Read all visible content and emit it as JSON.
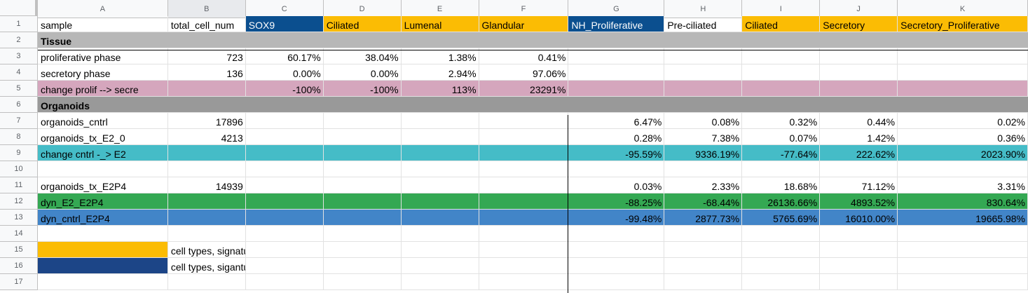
{
  "columns": [
    "A",
    "B",
    "C",
    "D",
    "E",
    "F",
    "G",
    "H",
    "I",
    "J",
    "K"
  ],
  "colors": {
    "sox9_blue": "#0b4f8f",
    "secretory_yellow": "#fbbc04",
    "nh_prolif_blue": "#0b4f8f",
    "gray_tissue": "#b7b7b7",
    "gray_organoids": "#999999",
    "pink_change": "#d5a6bd",
    "teal_change": "#45bcc7",
    "green_dyn": "#34a853",
    "blue_dyn": "#4285c8",
    "legend_dark_blue": "#1c4587"
  },
  "rows": [
    {
      "n": "1",
      "cells": [
        "sample",
        "total_cell_num",
        "SOX9",
        "Ciliated",
        "Lumenal",
        "Glandular",
        "NH_Proliferative",
        "Pre-ciliated",
        "Ciliated",
        "Secretory",
        "Secretory_Proliferative"
      ]
    },
    {
      "n": "2",
      "cells": [
        "Tissue",
        "",
        "",
        "",
        "",
        "",
        "",
        "",
        "",
        "",
        ""
      ]
    },
    {
      "n": "3",
      "cells": [
        "proliferative phase",
        "723",
        "60.17%",
        "38.04%",
        "1.38%",
        "0.41%",
        "",
        "",
        "",
        "",
        ""
      ]
    },
    {
      "n": "4",
      "cells": [
        "secretory phase",
        "136",
        "0.00%",
        "0.00%",
        "2.94%",
        "97.06%",
        "",
        "",
        "",
        "",
        ""
      ]
    },
    {
      "n": "5",
      "cells": [
        "change prolif --> secre",
        "",
        "-100%",
        "-100%",
        "113%",
        "23291%",
        "",
        "",
        "",
        "",
        ""
      ]
    },
    {
      "n": "6",
      "cells": [
        "Organoids",
        "",
        "",
        "",
        "",
        "",
        "",
        "",
        "",
        "",
        ""
      ]
    },
    {
      "n": "7",
      "cells": [
        "organoids_cntrl",
        "17896",
        "",
        "",
        "",
        "",
        "6.47%",
        "0.08%",
        "0.32%",
        "0.44%",
        "0.02%"
      ]
    },
    {
      "n": "8",
      "cells": [
        "organoids_tx_E2_0",
        "4213",
        "",
        "",
        "",
        "",
        "0.28%",
        "7.38%",
        "0.07%",
        "1.42%",
        "0.36%"
      ]
    },
    {
      "n": "9",
      "cells": [
        "change cntrl -_> E2",
        "",
        "",
        "",
        "",
        "",
        "-95.59%",
        "9336.19%",
        "-77.64%",
        "222.62%",
        "2023.90%"
      ]
    },
    {
      "n": "10",
      "cells": [
        "",
        "",
        "",
        "",
        "",
        "",
        "",
        "",
        "",
        "",
        ""
      ]
    },
    {
      "n": "11",
      "cells": [
        "organoids_tx_E2P4",
        "14939",
        "",
        "",
        "",
        "",
        "0.03%",
        "2.33%",
        "18.68%",
        "71.12%",
        "3.31%"
      ]
    },
    {
      "n": "12",
      "cells": [
        "dyn_E2_E2P4",
        "",
        "",
        "",
        "",
        "",
        "-88.25%",
        "-68.44%",
        "26136.66%",
        "4893.52%",
        "830.64%"
      ]
    },
    {
      "n": "13",
      "cells": [
        "dyn_cntrl_E2P4",
        "",
        "",
        "",
        "",
        "",
        "-99.48%",
        "2877.73%",
        "5765.69%",
        "16010.00%",
        "19665.98%"
      ]
    },
    {
      "n": "14",
      "cells": [
        "",
        "",
        "",
        "",
        "",
        "",
        "",
        "",
        "",
        "",
        ""
      ]
    },
    {
      "n": "15",
      "cells": [
        "",
        "cell types, signature for secretory phase",
        "",
        "",
        "",
        "",
        "",
        "",
        "",
        "",
        ""
      ]
    },
    {
      "n": "16",
      "cells": [
        "",
        "cell types, siganture for proliferating phase",
        "",
        "",
        "",
        "",
        "",
        "",
        "",
        "",
        ""
      ]
    },
    {
      "n": "17",
      "cells": [
        "",
        "",
        "",
        "",
        "",
        "",
        "",
        "",
        "",
        "",
        ""
      ]
    }
  ]
}
